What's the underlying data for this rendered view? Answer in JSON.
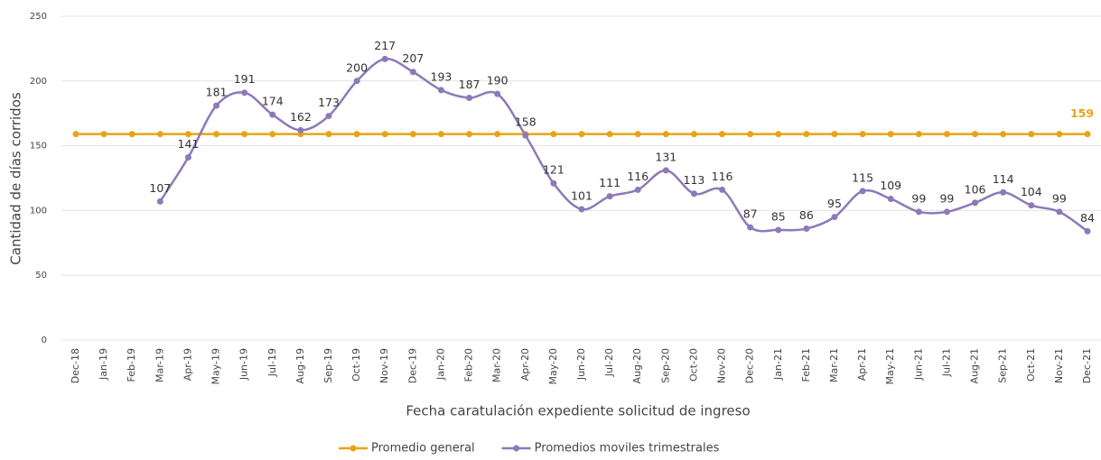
{
  "chart_data": {
    "type": "line",
    "ylabel": "Cantidad de días corridos",
    "xlabel": "Fecha caratulación expediente solicitud de ingreso",
    "categories": [
      "Dec-18",
      "Jan-19",
      "Feb-19",
      "Mar-19",
      "Apr-19",
      "May-19",
      "Jun-19",
      "Jul-19",
      "Aug-19",
      "Sep-19",
      "Oct-19",
      "Nov-19",
      "Dec-19",
      "Jan-20",
      "Feb-20",
      "Mar-20",
      "Apr-20",
      "May-20",
      "Jun-20",
      "Jul-20",
      "Aug-20",
      "Sep-20",
      "Oct-20",
      "Nov-20",
      "Dec-20",
      "Jan-21",
      "Feb-21",
      "Mar-21",
      "Apr-21",
      "May-21",
      "Jun-21",
      "Jul-21",
      "Aug-21",
      "Sep-21",
      "Oct-21",
      "Nov-21",
      "Dec-21"
    ],
    "series": [
      {
        "name": "Promedio general",
        "color": "#e8a317",
        "data_labels": "last",
        "values": [
          159,
          159,
          159,
          159,
          159,
          159,
          159,
          159,
          159,
          159,
          159,
          159,
          159,
          159,
          159,
          159,
          159,
          159,
          159,
          159,
          159,
          159,
          159,
          159,
          159,
          159,
          159,
          159,
          159,
          159,
          159,
          159,
          159,
          159,
          159,
          159,
          159
        ]
      },
      {
        "name": "Promedios moviles trimestrales",
        "color": "#8c7ab8",
        "data_labels": "all",
        "values": [
          null,
          null,
          null,
          107,
          141,
          181,
          191,
          174,
          162,
          173,
          200,
          217,
          207,
          193,
          187,
          190,
          158,
          121,
          101,
          111,
          116,
          131,
          113,
          116,
          87,
          85,
          86,
          95,
          115,
          109,
          99,
          99,
          106,
          114,
          104,
          99,
          84
        ]
      }
    ],
    "ylim": [
      0,
      250
    ],
    "yticks": [
      0,
      50,
      100,
      150,
      200,
      250
    ],
    "grid": true,
    "legend": "bottom"
  }
}
